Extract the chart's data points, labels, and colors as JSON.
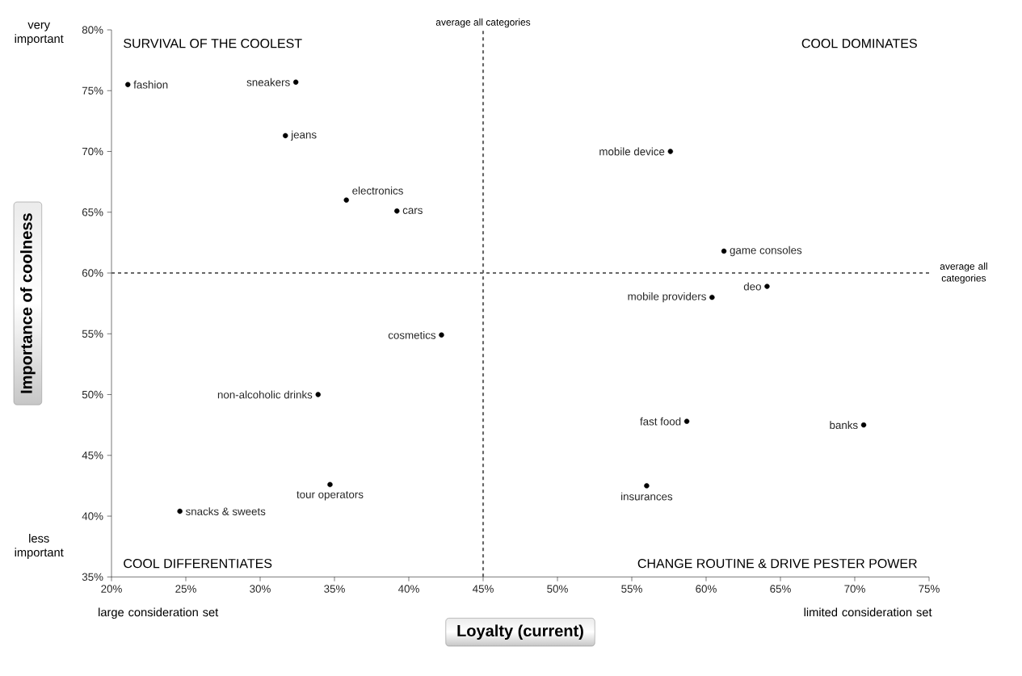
{
  "chart_data": {
    "type": "scatter",
    "xlabel": "Loyalty (current)",
    "ylabel": "Importance of coolness",
    "x": [
      21.1,
      32.4,
      31.7,
      35.8,
      39.2,
      57.6,
      61.2,
      64.1,
      60.4,
      42.2,
      33.9,
      58.7,
      70.6,
      34.7,
      56.0,
      24.6
    ],
    "values": [
      75.5,
      75.7,
      71.3,
      66.0,
      65.1,
      70.0,
      61.8,
      58.9,
      58.0,
      54.9,
      50.0,
      47.8,
      47.5,
      42.6,
      42.5,
      40.4
    ],
    "color": "#000000",
    "marker": "circle",
    "grid": false,
    "xlim": [
      20,
      75
    ],
    "ylim": [
      35,
      80
    ],
    "xticks": [
      {
        "value": 20,
        "label": "20%"
      },
      {
        "value": 25,
        "label": "25%"
      },
      {
        "value": 30,
        "label": "30%"
      },
      {
        "value": 35,
        "label": "35%"
      },
      {
        "value": 40,
        "label": "40%"
      },
      {
        "value": 45,
        "label": "45%"
      },
      {
        "value": 50,
        "label": "50%"
      },
      {
        "value": 55,
        "label": "55%"
      },
      {
        "value": 60,
        "label": "60%"
      },
      {
        "value": 65,
        "label": "65%"
      },
      {
        "value": 70,
        "label": "70%"
      },
      {
        "value": 75,
        "label": "75%"
      }
    ],
    "yticks": [
      {
        "value": 35,
        "label": "35%"
      },
      {
        "value": 40,
        "label": "40%"
      },
      {
        "value": 45,
        "label": "45%"
      },
      {
        "value": 50,
        "label": "50%"
      },
      {
        "value": 55,
        "label": "55%"
      },
      {
        "value": 60,
        "label": "60%"
      },
      {
        "value": 65,
        "label": "65%"
      },
      {
        "value": 70,
        "label": "70%"
      },
      {
        "value": 75,
        "label": "75%"
      },
      {
        "value": 80,
        "label": "80%"
      }
    ],
    "ref_lines": [
      {
        "axis": "x",
        "value": 45,
        "label": "average all categories",
        "line_style": "dashed"
      },
      {
        "axis": "y",
        "value": 60,
        "label": "average all categories",
        "line_style": "dashed"
      }
    ],
    "annotations": [
      "SURVIVAL OF THE COOLEST",
      "COOL DOMINATES",
      "COOL DIFFERENTIATES",
      "CHANGE ROUTINE & DRIVE PESTER POWER",
      "very important",
      "less important",
      "large consideration set",
      "limited consideration set",
      {
        "text": "fashion",
        "x": 21.1,
        "y": 75.5
      },
      {
        "text": "sneakers",
        "x": 32.4,
        "y": 75.7
      },
      {
        "text": "jeans",
        "x": 31.7,
        "y": 71.3
      },
      {
        "text": "electronics",
        "x": 35.8,
        "y": 66.0
      },
      {
        "text": "cars",
        "x": 39.2,
        "y": 65.1
      },
      {
        "text": "mobile device",
        "x": 57.6,
        "y": 70.0
      },
      {
        "text": "game consoles",
        "x": 61.2,
        "y": 61.8
      },
      {
        "text": "deo",
        "x": 64.1,
        "y": 58.9
      },
      {
        "text": "mobile providers",
        "x": 60.4,
        "y": 58.0
      },
      {
        "text": "cosmetics",
        "x": 42.2,
        "y": 54.9
      },
      {
        "text": "non-alcoholic drinks",
        "x": 33.9,
        "y": 50.0
      },
      {
        "text": "fast food",
        "x": 58.7,
        "y": 47.8
      },
      {
        "text": "banks",
        "x": 70.6,
        "y": 47.5
      },
      {
        "text": "tour operators",
        "x": 34.7,
        "y": 42.6
      },
      {
        "text": "insurances",
        "x": 56.0,
        "y": 42.5
      },
      {
        "text": "snacks & sweets",
        "x": 24.6,
        "y": 40.4
      }
    ]
  }
}
